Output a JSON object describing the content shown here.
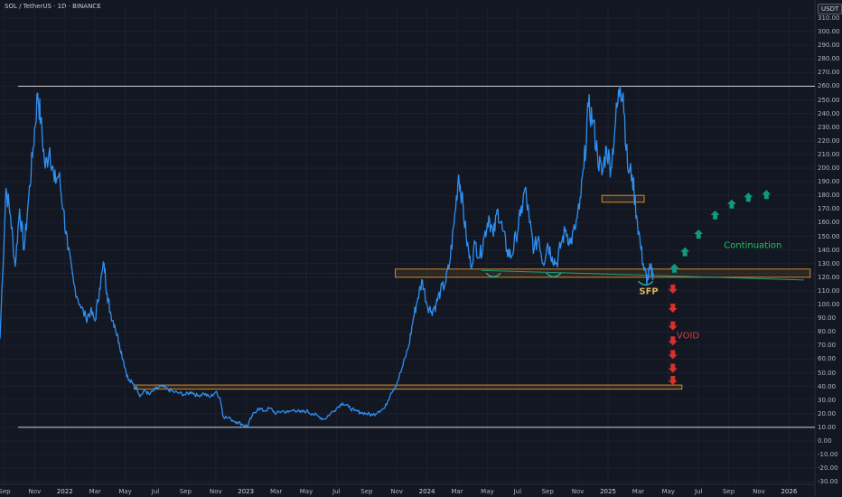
{
  "header": {
    "title": "SOL / TetherUS · 1D · BINANCE",
    "currency_badge": "USDT"
  },
  "colors": {
    "background": "#131722",
    "price_line": "#2f8ff0",
    "zone": "#d08a2a",
    "bull_arrow": "#0e9980",
    "bear_arrow": "#d7312e",
    "sfp": "#26a69a",
    "continuation": "#1fc45a",
    "void": "#e0393b",
    "level": "#cfd3da",
    "trend": "#1f9e7a"
  },
  "chart_data": {
    "type": "line",
    "title": "SOL / TetherUS · 1D · BINANCE",
    "xlabel": "",
    "ylabel": "",
    "ylim": [
      -30,
      320
    ],
    "y_ticks": [
      -30,
      -20,
      -10,
      0,
      10,
      20,
      30,
      40,
      50,
      60,
      70,
      80,
      90,
      100,
      110,
      120,
      130,
      140,
      150,
      160,
      170,
      180,
      190,
      200,
      210,
      220,
      230,
      240,
      250,
      260,
      270,
      280,
      290,
      300,
      310
    ],
    "x_ticks": [
      {
        "label": "Sep",
        "m": 0
      },
      {
        "label": "Nov",
        "m": 2
      },
      {
        "label": "2022",
        "m": 4
      },
      {
        "label": "Mar",
        "m": 6
      },
      {
        "label": "May",
        "m": 8
      },
      {
        "label": "Jul",
        "m": 10
      },
      {
        "label": "Sep",
        "m": 12
      },
      {
        "label": "Nov",
        "m": 14
      },
      {
        "label": "2023",
        "m": 16
      },
      {
        "label": "Mar",
        "m": 18
      },
      {
        "label": "May",
        "m": 20
      },
      {
        "label": "Jul",
        "m": 22
      },
      {
        "label": "Sep",
        "m": 24
      },
      {
        "label": "Nov",
        "m": 26
      },
      {
        "label": "2024",
        "m": 28
      },
      {
        "label": "Mar",
        "m": 30
      },
      {
        "label": "May",
        "m": 32
      },
      {
        "label": "Jul",
        "m": 34
      },
      {
        "label": "Sep",
        "m": 36
      },
      {
        "label": "Nov",
        "m": 38
      },
      {
        "label": "2025",
        "m": 40
      },
      {
        "label": "Mar",
        "m": 42
      },
      {
        "label": "May",
        "m": 44
      },
      {
        "label": "Jul",
        "m": 46
      },
      {
        "label": "Sep",
        "m": 48
      },
      {
        "label": "Nov",
        "m": 50
      },
      {
        "label": "2026",
        "m": 52
      }
    ],
    "price_series": {
      "name": "SOL/USDT",
      "points": [
        [
          -0.3,
          75
        ],
        [
          0.1,
          185
        ],
        [
          0.4,
          165
        ],
        [
          0.7,
          128
        ],
        [
          1.0,
          170
        ],
        [
          1.3,
          140
        ],
        [
          1.6,
          178
        ],
        [
          1.9,
          215
        ],
        [
          2.2,
          255
        ],
        [
          2.4,
          235
        ],
        [
          2.7,
          200
        ],
        [
          3.0,
          215
        ],
        [
          3.3,
          190
        ],
        [
          3.6,
          195
        ],
        [
          3.9,
          170
        ],
        [
          4.2,
          140
        ],
        [
          4.6,
          115
        ],
        [
          5.0,
          100
        ],
        [
          5.4,
          90
        ],
        [
          5.7,
          95
        ],
        [
          6.0,
          88
        ],
        [
          6.3,
          112
        ],
        [
          6.6,
          130
        ],
        [
          6.8,
          108
        ],
        [
          7.0,
          95
        ],
        [
          7.3,
          85
        ],
        [
          7.6,
          72
        ],
        [
          7.9,
          58
        ],
        [
          8.2,
          45
        ],
        [
          8.5,
          42
        ],
        [
          8.8,
          38
        ],
        [
          9.0,
          33
        ],
        [
          9.3,
          37
        ],
        [
          9.6,
          34
        ],
        [
          10.0,
          38
        ],
        [
          10.4,
          40
        ],
        [
          10.8,
          38
        ],
        [
          11.2,
          36
        ],
        [
          11.6,
          35
        ],
        [
          12.0,
          34
        ],
        [
          12.4,
          36
        ],
        [
          12.8,
          33
        ],
        [
          13.2,
          35
        ],
        [
          13.6,
          32
        ],
        [
          14.0,
          36
        ],
        [
          14.3,
          31
        ],
        [
          14.5,
          18
        ],
        [
          15.0,
          16
        ],
        [
          15.4,
          14
        ],
        [
          15.8,
          12
        ],
        [
          16.1,
          11
        ],
        [
          16.4,
          18
        ],
        [
          16.8,
          24
        ],
        [
          17.2,
          22
        ],
        [
          17.6,
          24
        ],
        [
          18.0,
          20
        ],
        [
          18.4,
          22
        ],
        [
          18.8,
          21
        ],
        [
          19.2,
          23
        ],
        [
          19.6,
          21
        ],
        [
          20.0,
          22
        ],
        [
          20.4,
          20
        ],
        [
          20.8,
          18
        ],
        [
          21.2,
          16
        ],
        [
          21.6,
          20
        ],
        [
          22.0,
          24
        ],
        [
          22.4,
          28
        ],
        [
          22.8,
          25
        ],
        [
          23.2,
          22
        ],
        [
          23.6,
          21
        ],
        [
          24.0,
          20
        ],
        [
          24.4,
          19
        ],
        [
          24.8,
          22
        ],
        [
          25.2,
          24
        ],
        [
          25.6,
          35
        ],
        [
          26.0,
          42
        ],
        [
          26.4,
          55
        ],
        [
          26.8,
          70
        ],
        [
          27.1,
          90
        ],
        [
          27.4,
          105
        ],
        [
          27.7,
          118
        ],
        [
          28.0,
          100
        ],
        [
          28.3,
          95
        ],
        [
          28.6,
          100
        ],
        [
          28.9,
          110
        ],
        [
          29.2,
          115
        ],
        [
          29.5,
          130
        ],
        [
          29.8,
          160
        ],
        [
          30.1,
          195
        ],
        [
          30.3,
          180
        ],
        [
          30.6,
          150
        ],
        [
          30.9,
          128
        ],
        [
          31.2,
          145
        ],
        [
          31.5,
          135
        ],
        [
          31.8,
          150
        ],
        [
          32.1,
          165
        ],
        [
          32.4,
          150
        ],
        [
          32.7,
          170
        ],
        [
          33.0,
          155
        ],
        [
          33.3,
          140
        ],
        [
          33.6,
          135
        ],
        [
          33.9,
          150
        ],
        [
          34.2,
          165
        ],
        [
          34.5,
          185
        ],
        [
          34.8,
          160
        ],
        [
          35.1,
          140
        ],
        [
          35.4,
          150
        ],
        [
          35.7,
          130
        ],
        [
          36.0,
          145
        ],
        [
          36.3,
          135
        ],
        [
          36.6,
          130
        ],
        [
          36.9,
          145
        ],
        [
          37.2,
          155
        ],
        [
          37.5,
          145
        ],
        [
          37.8,
          155
        ],
        [
          38.1,
          170
        ],
        [
          38.4,
          200
        ],
        [
          38.7,
          245
        ],
        [
          39.0,
          235
        ],
        [
          39.3,
          210
        ],
        [
          39.6,
          195
        ],
        [
          39.9,
          215
        ],
        [
          40.2,
          200
        ],
        [
          40.5,
          235
        ],
        [
          40.8,
          260
        ],
        [
          41.0,
          255
        ],
        [
          41.3,
          200
        ],
        [
          41.6,
          195
        ],
        [
          41.9,
          165
        ],
        [
          42.2,
          140
        ],
        [
          42.4,
          125
        ],
        [
          42.6,
          118
        ],
        [
          42.8,
          126
        ],
        [
          43.0,
          123
        ]
      ]
    },
    "price_levels": [
      260,
      10
    ],
    "zones": [
      {
        "m0": 8.6,
        "m1": 44.9,
        "y0": 38,
        "y1": 41
      },
      {
        "m0": 25.9,
        "m1": 53.4,
        "y0": 120,
        "y1": 126
      },
      {
        "m0": 39.6,
        "m1": 42.4,
        "y0": 175,
        "y1": 180
      }
    ],
    "trendline": {
      "m0": 31.6,
      "y0": 125,
      "m1": 53.0,
      "y1": 118
    },
    "sfp_marks": [
      {
        "m": 32.4,
        "y": 123
      },
      {
        "m": 36.4,
        "y": 123
      },
      {
        "m": 42.5,
        "y": 117
      }
    ],
    "bull_arrows": [
      {
        "m": 44.4,
        "y": 126
      },
      {
        "m": 45.1,
        "y": 138
      },
      {
        "m": 46.0,
        "y": 151
      },
      {
        "m": 47.1,
        "y": 165
      },
      {
        "m": 48.2,
        "y": 173
      },
      {
        "m": 49.3,
        "y": 178
      },
      {
        "m": 50.5,
        "y": 180
      }
    ],
    "bear_arrows": [
      {
        "m": 44.3,
        "y": 112
      },
      {
        "m": 44.3,
        "y": 98
      },
      {
        "m": 44.3,
        "y": 85
      },
      {
        "m": 44.3,
        "y": 74
      },
      {
        "m": 44.3,
        "y": 64
      },
      {
        "m": 44.3,
        "y": 54
      },
      {
        "m": 44.3,
        "y": 45
      }
    ],
    "annotations": {
      "continuation": {
        "text": "Continuation",
        "m": 49.6,
        "y": 143
      },
      "void": {
        "text": "VOID",
        "m": 45.3,
        "y": 77
      },
      "sfp": {
        "text": "SFP",
        "m": 42.7,
        "y": 109
      }
    }
  }
}
